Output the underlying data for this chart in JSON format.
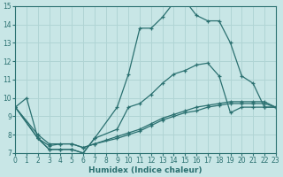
{
  "xlabel": "Humidex (Indice chaleur)",
  "background_color": "#c8e6e6",
  "grid_color": "#b0d4d4",
  "line_color": "#2a7070",
  "xlim": [
    0,
    23
  ],
  "ylim": [
    7,
    15
  ],
  "xticks": [
    0,
    1,
    2,
    3,
    4,
    5,
    6,
    7,
    8,
    9,
    10,
    11,
    12,
    13,
    14,
    15,
    16,
    17,
    18,
    19,
    20,
    21,
    22,
    23
  ],
  "yticks": [
    7,
    8,
    9,
    10,
    11,
    12,
    13,
    14,
    15
  ],
  "curve_upper_x": [
    0,
    1,
    2,
    3,
    4,
    5,
    6,
    7,
    9,
    10,
    11,
    12,
    13,
    14,
    15,
    16,
    17,
    18,
    19,
    20,
    21,
    22,
    23
  ],
  "curve_upper_y": [
    9.5,
    10.0,
    7.8,
    7.2,
    7.2,
    7.2,
    7.0,
    7.8,
    9.5,
    11.3,
    13.8,
    13.8,
    14.4,
    15.2,
    15.3,
    14.5,
    14.2,
    14.2,
    13.0,
    11.2,
    10.8,
    9.5,
    9.5
  ],
  "curve_upper2_x": [
    0,
    2,
    3,
    4,
    5,
    6,
    7,
    9,
    10,
    11,
    12,
    13,
    14,
    15,
    16,
    17,
    18,
    19,
    20,
    21,
    22,
    23
  ],
  "curve_upper2_y": [
    9.5,
    7.8,
    7.2,
    7.2,
    7.2,
    7.0,
    7.8,
    8.3,
    9.5,
    9.7,
    10.2,
    10.8,
    11.3,
    11.5,
    11.8,
    11.9,
    11.2,
    9.2,
    9.5,
    9.5,
    9.5,
    9.5
  ],
  "curve_lower1_x": [
    0,
    2,
    3,
    4,
    5,
    6,
    7,
    8,
    9,
    10,
    11,
    12,
    13,
    14,
    15,
    16,
    17,
    18,
    19,
    20,
    21,
    22,
    23
  ],
  "curve_lower1_y": [
    9.5,
    8.0,
    7.5,
    7.5,
    7.5,
    7.3,
    7.5,
    7.7,
    7.9,
    8.1,
    8.3,
    8.6,
    8.9,
    9.1,
    9.3,
    9.5,
    9.6,
    9.7,
    9.8,
    9.8,
    9.8,
    9.8,
    9.5
  ],
  "curve_lower2_x": [
    0,
    2,
    3,
    4,
    5,
    6,
    7,
    9,
    10,
    11,
    12,
    13,
    14,
    15,
    16,
    17,
    18,
    19,
    20,
    21,
    22,
    23
  ],
  "curve_lower2_y": [
    9.5,
    7.8,
    7.4,
    7.5,
    7.5,
    7.3,
    7.5,
    7.8,
    8.0,
    8.2,
    8.5,
    8.8,
    9.0,
    9.2,
    9.3,
    9.5,
    9.6,
    9.7,
    9.7,
    9.7,
    9.7,
    9.5
  ]
}
